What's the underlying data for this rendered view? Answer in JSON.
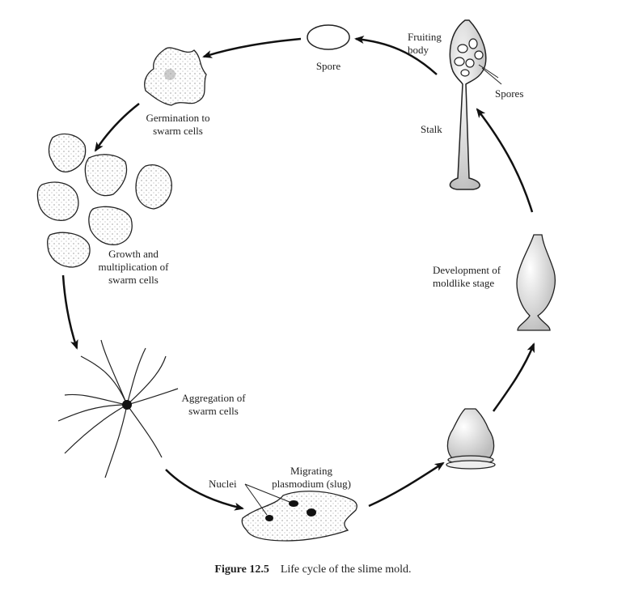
{
  "labels": {
    "spore": "Spore",
    "fruiting_body": [
      "Fruiting",
      "body"
    ],
    "spores": "Spores",
    "stalk": "Stalk",
    "germination": [
      "Germination to",
      "swarm cells"
    ],
    "growth": [
      "Growth and",
      "multiplication of",
      "swarm cells"
    ],
    "aggregation": [
      "Aggregation of",
      "swarm cells"
    ],
    "migrating": [
      "Migrating",
      "plasmodium (slug)"
    ],
    "nuclei": "Nuclei",
    "development": [
      "Development of",
      "moldlike stage"
    ]
  },
  "caption": {
    "number": "Figure 12.5",
    "text": "Life cycle of the slime mold."
  }
}
